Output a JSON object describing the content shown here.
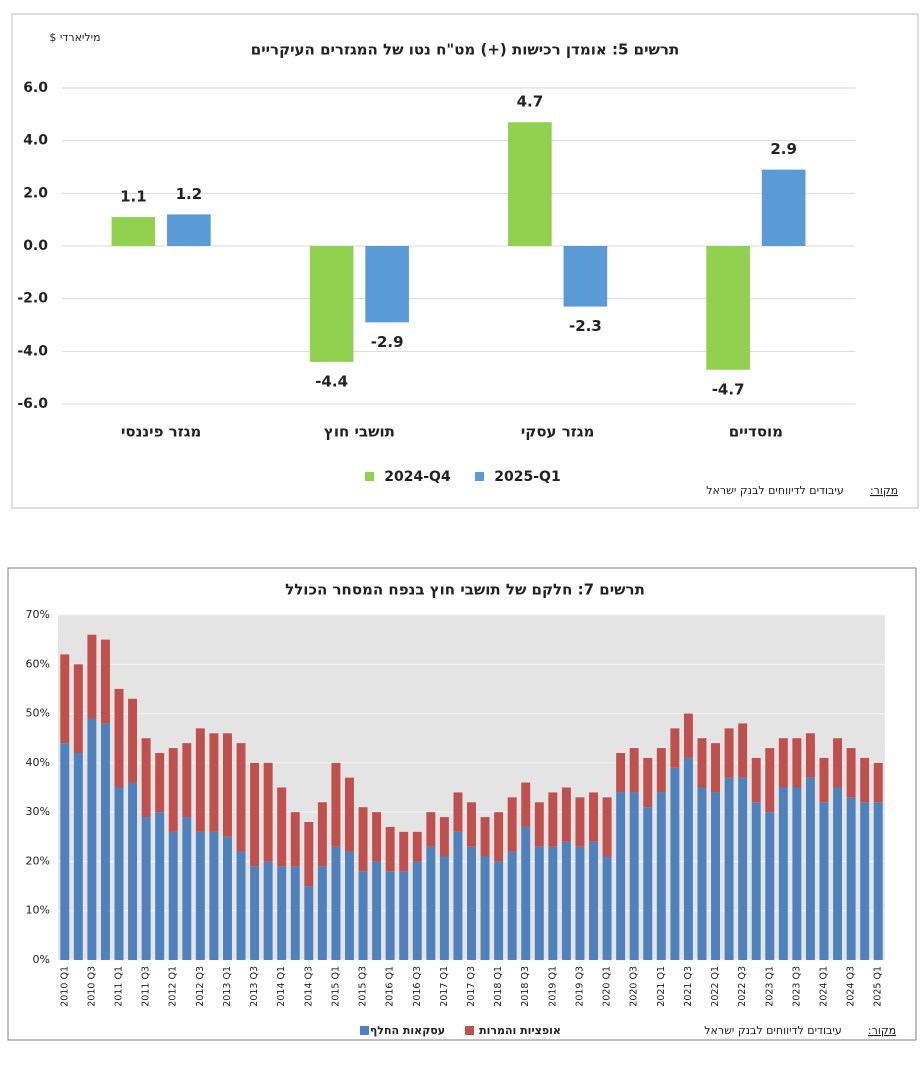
{
  "chart_data": [
    {
      "type": "bar",
      "title": "תרשים 5: אומדן רכישות (+) מט\"ח נטו של המגזרים העיקריים",
      "y_label": "מיליארדי $",
      "source_label": "מקור:",
      "source": "עיבודים לדיווחים לבנק ישראל",
      "categories": [
        "מגזר פיננסי",
        "תושבי חוץ",
        "מגזר עסקי",
        "מוסדיים"
      ],
      "series": [
        {
          "name": "2024-Q4",
          "color": "#92d050",
          "values": [
            1.1,
            -4.4,
            4.7,
            -4.7
          ]
        },
        {
          "name": "2025-Q1",
          "color": "#5b9bd5",
          "values": [
            1.2,
            -2.9,
            -2.3,
            2.9
          ]
        }
      ],
      "ylim": [
        -6,
        6
      ],
      "yticks": [
        {
          "value": -6,
          "label": "-6.0"
        },
        {
          "value": -4,
          "label": "-4.0"
        },
        {
          "value": -2,
          "label": "-2.0"
        },
        {
          "value": 0,
          "label": "0.0"
        },
        {
          "value": 2,
          "label": "2.0"
        },
        {
          "value": 4,
          "label": "4.0"
        },
        {
          "value": 6,
          "label": "6.0"
        }
      ],
      "grid": true,
      "stacked": false,
      "data_labels": true
    },
    {
      "type": "bar",
      "title": "תרשים 7: חלקם של תושבי חוץ בנפח המסחר הכולל",
      "source_label": "מקור:",
      "source": "עיבודים לדיווחים לבנק ישראל",
      "categories": [
        "2010 Q1",
        null,
        "2010 Q3",
        null,
        "2011 Q1",
        null,
        "2011 Q3",
        null,
        "2012 Q1",
        null,
        "2012 Q3",
        null,
        "2013 Q1",
        null,
        "2013 Q3",
        null,
        "2014 Q1",
        null,
        "2014 Q3",
        null,
        "2015 Q1",
        null,
        "2015 Q3",
        null,
        "2016 Q1",
        null,
        "2016 Q3",
        null,
        "2017 Q1",
        null,
        "2017 Q3",
        null,
        "2018 Q1",
        null,
        "2018 Q3",
        null,
        "2019 Q1",
        null,
        "2019 Q3",
        null,
        "2020 Q1",
        null,
        "2020 Q3",
        null,
        "2021 Q1",
        null,
        "2021 Q3",
        null,
        "2022 Q1",
        null,
        "2022 Q3",
        null,
        "2023 Q1",
        null,
        "2023 Q3",
        null,
        "2024 Q1",
        null,
        "2024 Q3",
        null,
        "2025 Q1"
      ],
      "series": [
        {
          "name": "עסקאות החלף",
          "color": "#4f81bd",
          "values": [
            44,
            42,
            49,
            48,
            35,
            36,
            29,
            30,
            26,
            29,
            26,
            26,
            25,
            22,
            19,
            20,
            19,
            19,
            15,
            19,
            23,
            22,
            18,
            20,
            18,
            18,
            20,
            23,
            21,
            26,
            23,
            21,
            20,
            22,
            27,
            23,
            23,
            24,
            23,
            24,
            21,
            34,
            34,
            31,
            34,
            39,
            41,
            35,
            34,
            37,
            37,
            32,
            30,
            35,
            35,
            37,
            32,
            35,
            33,
            32,
            32
          ]
        },
        {
          "name": "אופציות והמרות",
          "color": "#c0504d",
          "values": [
            18,
            18,
            17,
            17,
            20,
            17,
            16,
            12,
            17,
            15,
            21,
            20,
            21,
            22,
            21,
            20,
            16,
            11,
            13,
            13,
            17,
            15,
            13,
            10,
            9,
            8,
            6,
            7,
            8,
            8,
            9,
            8,
            10,
            11,
            9,
            9,
            11,
            11,
            10,
            10,
            12,
            8,
            9,
            10,
            9,
            8,
            9,
            10,
            10,
            10,
            11,
            9,
            13,
            10,
            10,
            9,
            9,
            10,
            10,
            9,
            8
          ]
        }
      ],
      "ylim": [
        0,
        70
      ],
      "yticks": [
        {
          "value": 0,
          "label": "0%"
        },
        {
          "value": 10,
          "label": "10%"
        },
        {
          "value": 20,
          "label": "20%"
        },
        {
          "value": 30,
          "label": "30%"
        },
        {
          "value": 40,
          "label": "40%"
        },
        {
          "value": 50,
          "label": "50%"
        },
        {
          "value": 60,
          "label": "60%"
        },
        {
          "value": 70,
          "label": "70%"
        }
      ],
      "grid": true,
      "stacked": true,
      "data_labels": false
    }
  ]
}
